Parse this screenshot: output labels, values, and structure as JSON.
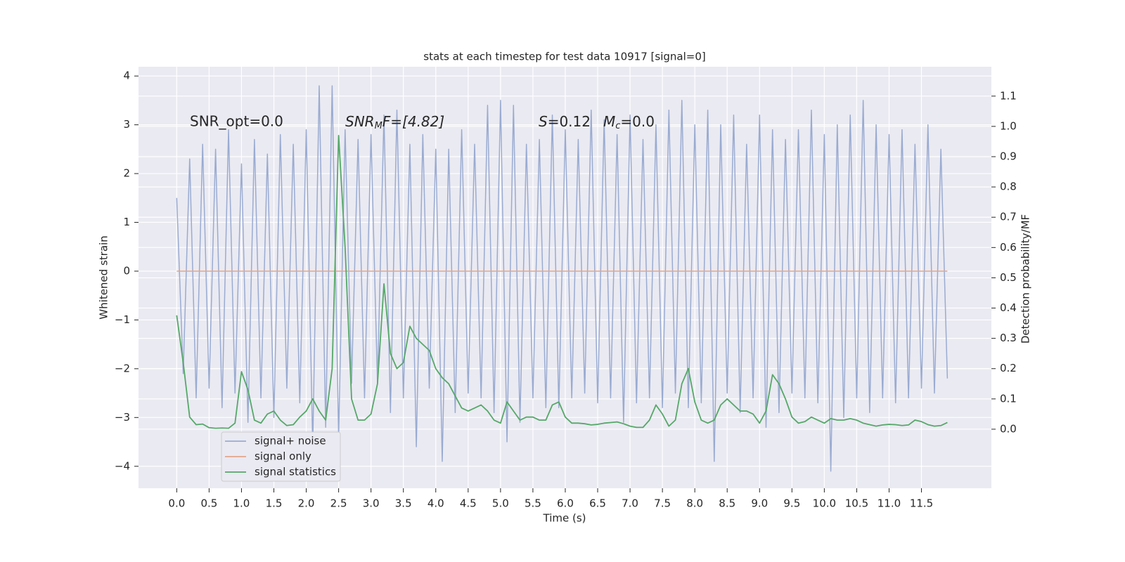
{
  "chart_data": {
    "type": "line",
    "title": "stats at each timestep for test data 10917 [signal=0]",
    "xlabel": "Time (s)",
    "ylabel": "Whitened strain",
    "y2label": "Detection probability/MF",
    "annotations": [
      [
        "SNR_opt=0.0"
      ],
      [
        "SNR",
        "M",
        "F=[4.82]"
      ],
      [
        "S",
        "=0.12",
        "M",
        "c",
        "=0.0"
      ]
    ],
    "x": [
      0.0,
      0.1,
      0.2,
      0.3,
      0.4,
      0.5,
      0.6,
      0.7,
      0.8,
      0.9,
      1.0,
      1.1,
      1.2,
      1.3,
      1.4,
      1.5,
      1.6,
      1.7,
      1.8,
      1.9,
      2.0,
      2.1,
      2.2,
      2.3,
      2.4,
      2.5,
      2.6,
      2.7,
      2.8,
      2.9,
      3.0,
      3.1,
      3.2,
      3.3,
      3.4,
      3.5,
      3.6,
      3.7,
      3.8,
      3.9,
      4.0,
      4.1,
      4.2,
      4.3,
      4.4,
      4.5,
      4.6,
      4.7,
      4.8,
      4.9,
      5.0,
      5.1,
      5.2,
      5.3,
      5.4,
      5.5,
      5.6,
      5.7,
      5.8,
      5.9,
      6.0,
      6.1,
      6.2,
      6.3,
      6.4,
      6.5,
      6.6,
      6.7,
      6.8,
      6.9,
      7.0,
      7.1,
      7.2,
      7.3,
      7.4,
      7.5,
      7.6,
      7.7,
      7.8,
      7.9,
      8.0,
      8.1,
      8.2,
      8.3,
      8.4,
      8.5,
      8.6,
      8.7,
      8.8,
      8.9,
      9.0,
      9.1,
      9.2,
      9.3,
      9.4,
      9.5,
      9.6,
      9.7,
      9.8,
      9.9,
      10.0,
      10.1,
      10.2,
      10.3,
      10.4,
      10.5,
      10.6,
      10.7,
      10.8,
      10.9,
      11.0,
      11.1,
      11.2,
      11.3,
      11.4,
      11.5,
      11.6,
      11.7,
      11.8,
      11.9
    ],
    "series": [
      {
        "name": "signal+ noise",
        "color": "#9aabd1",
        "values": [
          1.5,
          -2.1,
          2.3,
          -2.6,
          2.6,
          -2.4,
          2.5,
          -2.8,
          2.9,
          -2.5,
          2.2,
          -3.1,
          2.7,
          -2.6,
          2.4,
          -3.0,
          2.8,
          -2.4,
          2.6,
          -2.7,
          2.9,
          -3.6,
          3.8,
          -3.2,
          3.8,
          -3.4,
          2.9,
          -2.3,
          2.7,
          -2.6,
          2.8,
          -2.3,
          3.2,
          -2.9,
          3.3,
          -2.6,
          2.6,
          -3.6,
          2.8,
          -2.4,
          2.5,
          -3.9,
          2.5,
          -2.9,
          2.9,
          -2.5,
          2.6,
          -2.6,
          3.4,
          -2.9,
          3.5,
          -3.5,
          3.4,
          -3.1,
          2.6,
          -2.6,
          2.7,
          -2.8,
          3.2,
          -2.8,
          2.9,
          -2.6,
          2.7,
          -2.5,
          3.3,
          -2.7,
          3.1,
          -2.6,
          2.8,
          -3.1,
          3.2,
          -2.7,
          2.7,
          -2.6,
          3.0,
          -2.8,
          3.3,
          -2.5,
          3.5,
          -2.8,
          3.0,
          -2.7,
          3.3,
          -3.9,
          3.0,
          -2.5,
          3.2,
          -2.9,
          2.6,
          -2.6,
          3.2,
          -3.2,
          2.9,
          -2.9,
          2.7,
          -2.5,
          2.9,
          -2.6,
          3.3,
          -2.7,
          2.8,
          -4.1,
          3.0,
          -3.0,
          3.2,
          -2.6,
          3.5,
          -2.9,
          3.0,
          -2.6,
          2.8,
          -2.7,
          2.9,
          -2.6,
          2.6,
          -2.4,
          3.0,
          -2.5,
          2.5,
          -2.2
        ]
      },
      {
        "name": "signal only",
        "color": "#e3a68a",
        "values": [
          0,
          0,
          0,
          0,
          0,
          0,
          0,
          0,
          0,
          0,
          0,
          0,
          0,
          0,
          0,
          0,
          0,
          0,
          0,
          0,
          0,
          0,
          0,
          0,
          0,
          0,
          0,
          0,
          0,
          0,
          0,
          0,
          0,
          0,
          0,
          0,
          0,
          0,
          0,
          0,
          0,
          0,
          0,
          0,
          0,
          0,
          0,
          0,
          0,
          0,
          0,
          0,
          0,
          0,
          0,
          0,
          0,
          0,
          0,
          0,
          0,
          0,
          0,
          0,
          0,
          0,
          0,
          0,
          0,
          0,
          0,
          0,
          0,
          0,
          0,
          0,
          0,
          0,
          0,
          0,
          0,
          0,
          0,
          0,
          0,
          0,
          0,
          0,
          0,
          0,
          0,
          0,
          0,
          0,
          0,
          0,
          0,
          0,
          0,
          0,
          0,
          0,
          0,
          0,
          0,
          0,
          0,
          0,
          0,
          0,
          0,
          0,
          0,
          0,
          0,
          0,
          0,
          0,
          0,
          0
        ]
      },
      {
        "name": "signal statistics",
        "color": "#55a868",
        "axis": "y2",
        "values": [
          0.376,
          0.22,
          0.04,
          0.015,
          0.017,
          0.005,
          0.003,
          0.004,
          0.003,
          0.02,
          0.19,
          0.13,
          0.03,
          0.02,
          0.05,
          0.06,
          0.03,
          0.012,
          0.015,
          0.04,
          0.06,
          0.1,
          0.06,
          0.03,
          0.2,
          0.97,
          0.6,
          0.1,
          0.03,
          0.03,
          0.05,
          0.15,
          0.48,
          0.25,
          0.2,
          0.22,
          0.34,
          0.3,
          0.28,
          0.26,
          0.2,
          0.17,
          0.15,
          0.11,
          0.07,
          0.06,
          0.07,
          0.08,
          0.06,
          0.03,
          0.02,
          0.09,
          0.06,
          0.03,
          0.04,
          0.04,
          0.03,
          0.03,
          0.08,
          0.09,
          0.04,
          0.02,
          0.02,
          0.018,
          0.014,
          0.016,
          0.02,
          0.022,
          0.024,
          0.018,
          0.01,
          0.006,
          0.006,
          0.03,
          0.08,
          0.05,
          0.01,
          0.03,
          0.15,
          0.2,
          0.09,
          0.03,
          0.02,
          0.03,
          0.08,
          0.1,
          0.08,
          0.06,
          0.06,
          0.05,
          0.02,
          0.06,
          0.18,
          0.15,
          0.1,
          0.04,
          0.02,
          0.025,
          0.04,
          0.03,
          0.02,
          0.035,
          0.03,
          0.03,
          0.035,
          0.03,
          0.02,
          0.015,
          0.01,
          0.014,
          0.016,
          0.015,
          0.012,
          0.014,
          0.03,
          0.025,
          0.015,
          0.01,
          0.012,
          0.022
        ]
      }
    ],
    "xlim": [
      -0.59,
      12.58
    ],
    "ylim": [
      -4.45,
      4.19
    ],
    "y2lim": [
      -0.195,
      1.197
    ],
    "xticks": [
      {
        "value": 0,
        "label": "0.0"
      },
      0.5,
      {
        "value": 1,
        "label": "1.0"
      },
      1.5,
      {
        "value": 2,
        "label": "2.0"
      },
      2.5,
      {
        "value": 3,
        "label": "3.0"
      },
      3.5,
      {
        "value": 4,
        "label": "4.0"
      },
      4.5,
      {
        "value": 5,
        "label": "5.0"
      },
      5.5,
      {
        "value": 6,
        "label": "6.0"
      },
      6.5,
      {
        "value": 7,
        "label": "7.0"
      },
      7.5,
      {
        "value": 8,
        "label": "8.0"
      },
      8.5,
      {
        "value": 9,
        "label": "9.0"
      },
      9.5,
      {
        "value": 10,
        "label": "10.0"
      },
      10.5,
      {
        "value": 11,
        "label": "11.0"
      },
      11.5
    ],
    "yticks": [
      {
        "value": -4,
        "label": "−4"
      },
      {
        "value": -3,
        "label": "−3"
      },
      {
        "value": -2,
        "label": "−2"
      },
      {
        "value": -1,
        "label": "−1"
      },
      0,
      1,
      2,
      3,
      4
    ],
    "y2ticks": [
      {
        "value": 0,
        "label": "0.0"
      },
      0.1,
      0.2,
      0.3,
      0.4,
      0.5,
      0.6,
      0.7,
      0.8,
      0.9,
      {
        "value": 1,
        "label": "1.0"
      },
      1.1
    ],
    "grid": true,
    "legend": "lower left"
  }
}
